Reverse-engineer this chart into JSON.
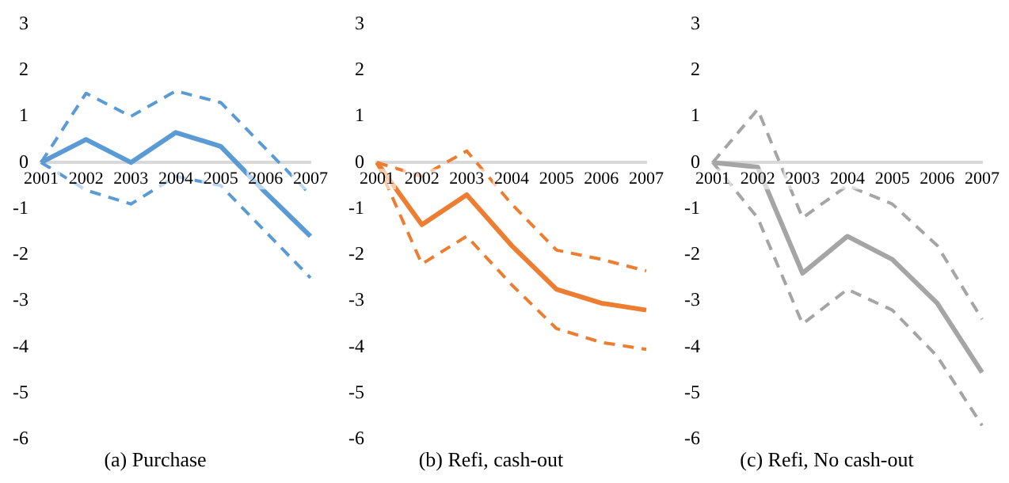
{
  "chart_data": [
    {
      "type": "line",
      "title": "(a) Purchase",
      "categories": [
        "2001",
        "2002",
        "2003",
        "2004",
        "2005",
        "2006",
        "2007"
      ],
      "ylim": [
        -6,
        3
      ],
      "yticks": [
        -6,
        -5,
        -4,
        -3,
        -2,
        -1,
        0,
        1,
        2,
        3
      ],
      "grid": false,
      "legend": false,
      "marker": "none",
      "series": [
        {
          "color": "#5b9bd5",
          "line_style": "solid",
          "values": [
            0,
            0.5,
            0,
            0.65,
            0.35,
            -0.65,
            -1.6
          ]
        },
        {
          "color": "#5b9bd5",
          "line_style": "dashed",
          "values": [
            0,
            1.5,
            1.0,
            1.55,
            1.3,
            0.3,
            -0.7
          ]
        },
        {
          "color": "#5b9bd5",
          "line_style": "dashed",
          "values": [
            0,
            -0.6,
            -0.9,
            -0.3,
            -0.5,
            -1.5,
            -2.5
          ]
        }
      ]
    },
    {
      "type": "line",
      "title": "(b) Refi, cash-out",
      "categories": [
        "2001",
        "2002",
        "2003",
        "2004",
        "2005",
        "2006",
        "2007"
      ],
      "ylim": [
        -6,
        3
      ],
      "yticks": [
        -6,
        -5,
        -4,
        -3,
        -2,
        -1,
        0,
        1,
        2,
        3
      ],
      "grid": false,
      "legend": false,
      "marker": "none",
      "series": [
        {
          "color": "#ed7d31",
          "line_style": "solid",
          "values": [
            0,
            -1.35,
            -0.7,
            -1.8,
            -2.75,
            -3.05,
            -3.2
          ]
        },
        {
          "color": "#ed7d31",
          "line_style": "dashed",
          "values": [
            0,
            -0.3,
            0.25,
            -0.9,
            -1.9,
            -2.1,
            -2.35
          ]
        },
        {
          "color": "#ed7d31",
          "line_style": "dashed",
          "values": [
            0,
            -2.2,
            -1.6,
            -2.65,
            -3.6,
            -3.9,
            -4.05
          ]
        }
      ]
    },
    {
      "type": "line",
      "title": "(c) Refi, No cash-out",
      "categories": [
        "2001",
        "2002",
        "2003",
        "2004",
        "2005",
        "2006",
        "2007"
      ],
      "ylim": [
        -6,
        3
      ],
      "yticks": [
        -6,
        -5,
        -4,
        -3,
        -2,
        -1,
        0,
        1,
        2,
        3
      ],
      "grid": false,
      "legend": false,
      "marker": "none",
      "series": [
        {
          "color": "#a5a5a5",
          "line_style": "solid",
          "values": [
            0,
            -0.1,
            -2.4,
            -1.6,
            -2.1,
            -3.05,
            -4.55
          ]
        },
        {
          "color": "#a5a5a5",
          "line_style": "dashed",
          "values": [
            0,
            1.15,
            -1.2,
            -0.5,
            -0.9,
            -1.8,
            -3.4
          ]
        },
        {
          "color": "#a5a5a5",
          "line_style": "dashed",
          "values": [
            0,
            -1.2,
            -3.5,
            -2.75,
            -3.2,
            -4.2,
            -5.7
          ]
        }
      ]
    }
  ]
}
